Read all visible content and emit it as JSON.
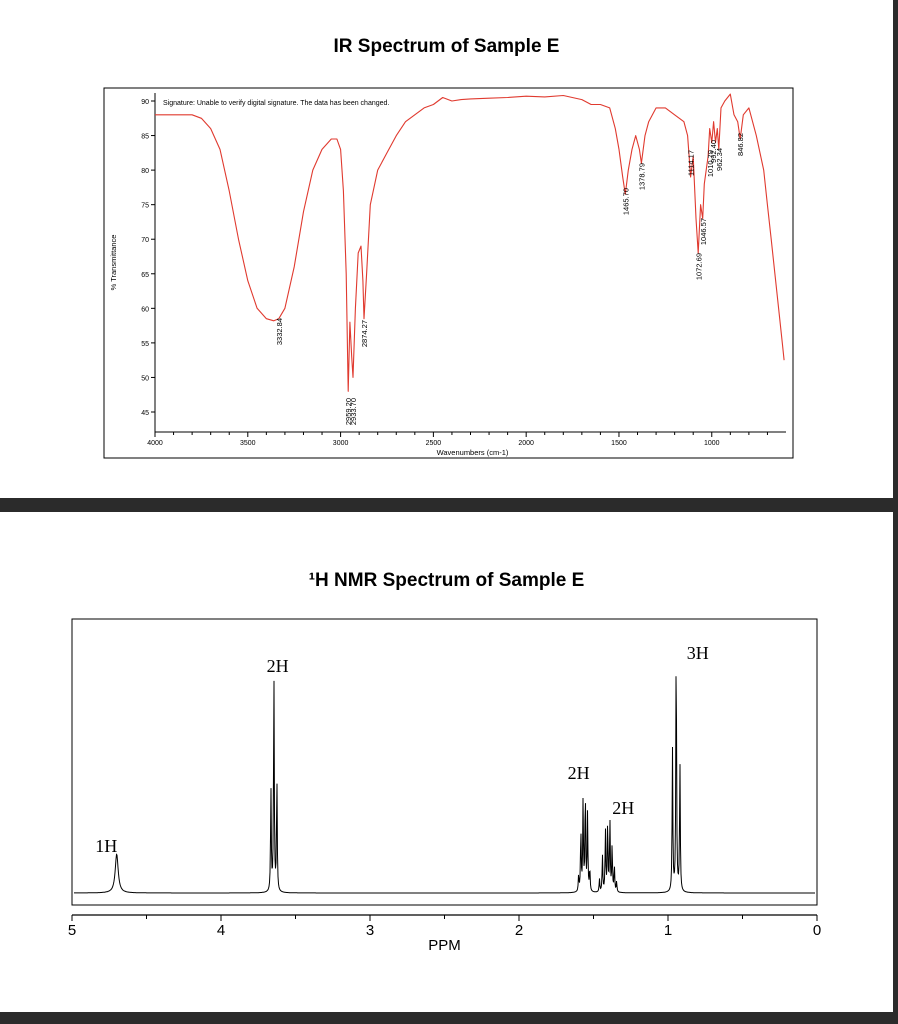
{
  "ir": {
    "title": "IR Spectrum of Sample E",
    "signature_note": "Signature: Unable to verify digital signature.  The data has been changed."
  },
  "nmr": {
    "title": "¹H NMR Spectrum of Sample E"
  },
  "colors": {
    "ir_line": "#e03a2f",
    "nmr_line": "#000000",
    "frame": "#000000",
    "divider": "#2b2b2b"
  },
  "chart_data": [
    {
      "type": "line",
      "title": "IR Spectrum of Sample E",
      "xlabel": "Wavenumbers (cm-1)",
      "ylabel": "% Transmittance",
      "xlim": [
        4000,
        600
      ],
      "ylim": [
        43,
        92
      ],
      "xticks": [
        4000,
        3500,
        3000,
        2500,
        2000,
        1500,
        1000
      ],
      "yticks": [
        45,
        50,
        55,
        60,
        65,
        70,
        75,
        80,
        85,
        90
      ],
      "grid": false,
      "series": [
        {
          "x": [
            4000,
            3900,
            3800,
            3750,
            3700,
            3650,
            3600,
            3550,
            3500,
            3450,
            3400,
            3360,
            3333,
            3300,
            3250,
            3200,
            3150,
            3100,
            3050,
            3020,
            3000,
            2985,
            2970,
            2959,
            2950,
            2940,
            2933,
            2920,
            2905,
            2890,
            2880,
            2874,
            2860,
            2840,
            2800,
            2750,
            2700,
            2650,
            2600,
            2550,
            2500,
            2450,
            2400,
            2350,
            2300,
            2200,
            2100,
            2000,
            1900,
            1800,
            1700,
            1650,
            1600,
            1550,
            1520,
            1500,
            1480,
            1466,
            1450,
            1430,
            1410,
            1390,
            1379,
            1360,
            1340,
            1300,
            1250,
            1200,
            1150,
            1130,
            1114,
            1100,
            1085,
            1073,
            1060,
            1049,
            1040,
            1030,
            1020,
            1011,
            1000,
            990,
            980,
            970,
            962,
            950,
            930,
            900,
            880,
            860,
            847,
            830,
            800,
            760,
            720,
            700,
            680,
            660,
            640,
            620,
            610
          ],
          "y": [
            88,
            88,
            88,
            87.5,
            86,
            83,
            77,
            70,
            64,
            60,
            58.5,
            58.2,
            58.5,
            60,
            66,
            74,
            80,
            83,
            84.5,
            84.5,
            83,
            77,
            65,
            48,
            58,
            53,
            50,
            60,
            68,
            69,
            64,
            58.5,
            65,
            75,
            80,
            82.5,
            85,
            87,
            88,
            89,
            89.5,
            90.5,
            90,
            90.2,
            90.3,
            90.4,
            90.5,
            90.7,
            90.6,
            90.8,
            90.2,
            89.5,
            89.5,
            89,
            86,
            83,
            79,
            76.5,
            80,
            83,
            85,
            83,
            81,
            85,
            87,
            89,
            89,
            88,
            87,
            85,
            79,
            82,
            73,
            68,
            75,
            73,
            78,
            80,
            82,
            86,
            84,
            87,
            84,
            86,
            83,
            89,
            90,
            91,
            88,
            87,
            84.5,
            88,
            89,
            85,
            80,
            75,
            70,
            65,
            60,
            55,
            52.5
          ],
          "peak_labels": [
            "3332.84",
            "2959.20",
            "2933.70",
            "2874.27",
            "1465.70",
            "1378.79",
            "1114.17",
            "1072.69",
            "1046.57",
            "1010.79",
            "992.40",
            "962.34",
            "846.82"
          ]
        }
      ]
    },
    {
      "type": "line",
      "title": "¹H NMR Spectrum of Sample E",
      "xlabel": "PPM",
      "ylabel": "",
      "xlim": [
        5,
        0
      ],
      "xticks": [
        5,
        4,
        3,
        2,
        1,
        0
      ],
      "grid": false,
      "peaks": [
        {
          "center": 4.7,
          "integration": "1H",
          "lines": [
            [
              4.7,
              0.15
            ]
          ],
          "width": 0.012
        },
        {
          "center": 3.64,
          "integration": "2H",
          "lines": [
            [
              3.665,
              0.4
            ],
            [
              3.645,
              0.85
            ],
            [
              3.625,
              0.44
            ]
          ],
          "width": 0.0028
        },
        {
          "center": 1.56,
          "integration": "2H",
          "lines": [
            [
              1.6,
              0.06
            ],
            [
              1.585,
              0.24
            ],
            [
              1.57,
              0.35
            ],
            [
              1.555,
              0.39
            ],
            [
              1.54,
              0.3
            ],
            [
              1.525,
              0.09
            ]
          ],
          "width": 0.0028
        },
        {
          "center": 1.39,
          "integration": "2H",
          "lines": [
            [
              1.46,
              0.05
            ],
            [
              1.44,
              0.14
            ],
            [
              1.42,
              0.24
            ],
            [
              1.405,
              0.27
            ],
            [
              1.39,
              0.28
            ],
            [
              1.375,
              0.18
            ],
            [
              1.36,
              0.1
            ],
            [
              1.345,
              0.04
            ]
          ],
          "width": 0.0028
        },
        {
          "center": 0.94,
          "integration": "3H",
          "lines": [
            [
              0.97,
              0.55
            ],
            [
              0.945,
              1.0
            ],
            [
              0.92,
              0.5
            ]
          ],
          "width": 0.0028
        }
      ]
    }
  ]
}
